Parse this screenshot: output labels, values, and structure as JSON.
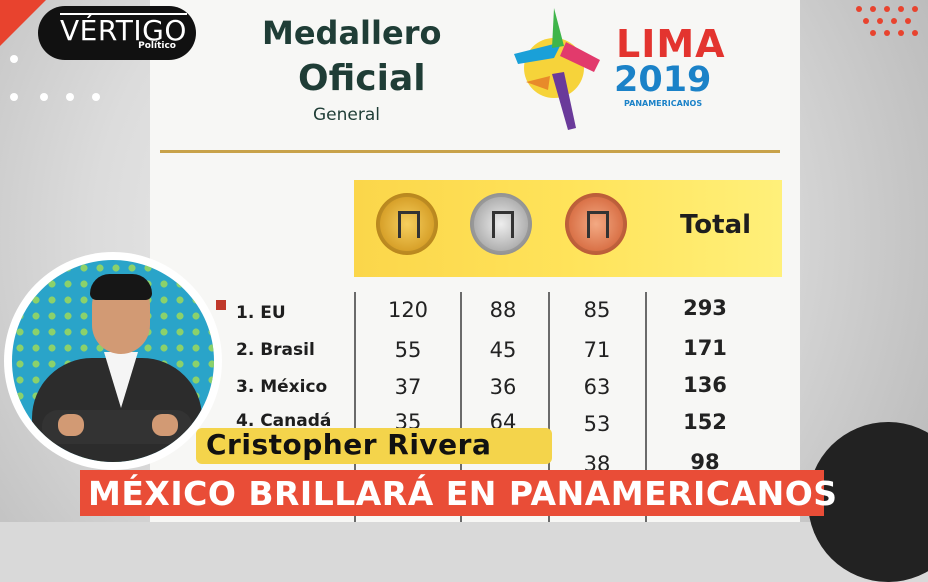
{
  "branding": {
    "logo_main": "VÉRTIGO",
    "logo_sub": "Político"
  },
  "document": {
    "title_line1": "Medallero",
    "title_line2": "Oficial",
    "title_line3": "General",
    "lima_word": "LIMA",
    "lima_year": "2019",
    "lima_sub": "PANAMERICANOS",
    "total_header": "Total",
    "rows": [
      {
        "country": "1. EU",
        "gold": "120",
        "silver": "88",
        "bronze": "85",
        "total": "293"
      },
      {
        "country": "2. Brasil",
        "gold": "55",
        "silver": "45",
        "bronze": "71",
        "total": "171"
      },
      {
        "country": "3. México",
        "gold": "37",
        "silver": "36",
        "bronze": "63",
        "total": "136"
      },
      {
        "country": "4. Canadá",
        "gold": "35",
        "silver": "64",
        "bronze": "53",
        "total": "152"
      },
      {
        "country": "",
        "gold": "",
        "silver": "",
        "bronze": "38",
        "total": "98"
      }
    ]
  },
  "lower_third": {
    "name": "Cristopher Rivera",
    "headline": "MÉXICO BRILLARÁ EN PANAMERICANOS"
  },
  "colors": {
    "accent_red": "#e94d37",
    "accent_yellow": "#f4d44b",
    "dark": "#111111"
  }
}
